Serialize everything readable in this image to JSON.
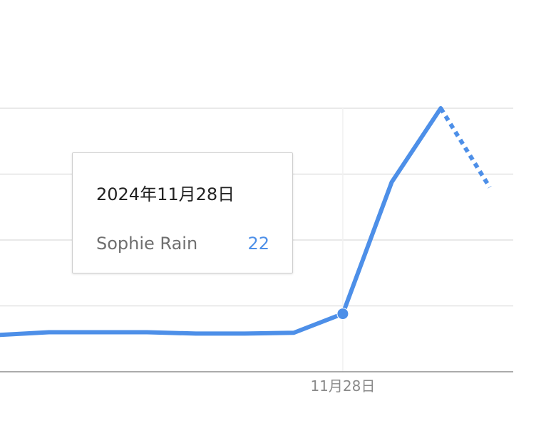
{
  "chart_data": {
    "type": "line",
    "x_labels": [
      "11月28日"
    ],
    "series": [
      {
        "name": "Sophie Rain",
        "values": [
          14,
          15,
          15,
          15,
          14.5,
          14.5,
          14.8,
          22,
          72,
          100,
          70
        ],
        "highlight_index": 7,
        "partial_from_index": 9
      }
    ],
    "ylim": [
      0,
      100
    ],
    "grid": true
  },
  "tooltip": {
    "date": "2024年11月28日",
    "series_name": "Sophie Rain",
    "value": "22"
  },
  "colors": {
    "line": "#4d8fe8",
    "grid": "#e2e2e2",
    "axis": "#8f8f8f",
    "tick_label": "#8a8a8a"
  }
}
